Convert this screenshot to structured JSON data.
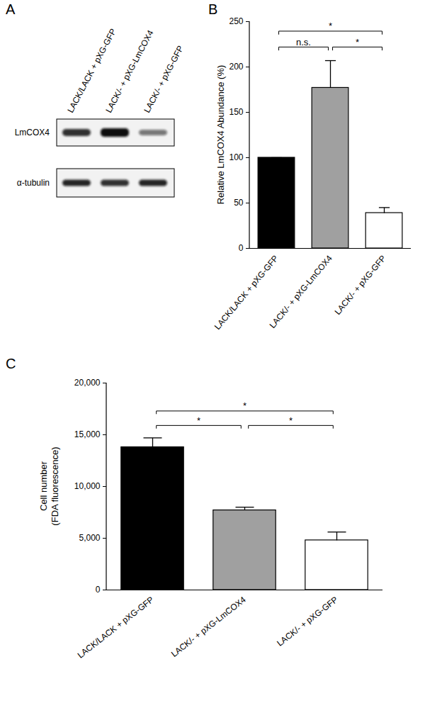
{
  "chart_data": [
    {
      "panel": "B",
      "type": "bar",
      "y_label": "Relative LmCOX4 Abundance (%)",
      "categories": [
        "LACK/LACK + pXG-GFP",
        "LACK/- + pXG-LmCOX4",
        "LACK/- + pXG-GFP"
      ],
      "values": [
        100,
        177,
        39
      ],
      "errors": [
        0,
        30,
        6
      ],
      "colors": [
        "#000000",
        "#a0a0a0",
        "#ffffff"
      ],
      "ylim": [
        0,
        250
      ],
      "yticks": [
        0,
        50,
        100,
        150,
        200,
        250
      ],
      "grid": false,
      "comparisons": [
        {
          "between": [
            "LACK/LACK + pXG-GFP",
            "LACK/- + pXG-LmCOX4"
          ],
          "label": "n.s."
        },
        {
          "between": [
            "LACK/- + pXG-LmCOX4",
            "LACK/- + pXG-GFP"
          ],
          "label": "*"
        },
        {
          "between": [
            "LACK/LACK + pXG-GFP",
            "LACK/- + pXG-GFP"
          ],
          "label": "*"
        }
      ]
    },
    {
      "panel": "C",
      "type": "bar",
      "y_label": "Cell number\n(FDA fluorescence)",
      "categories": [
        "LACK/LACK + pXG-GFP",
        "LACK/- + pXG-LmCOX4",
        "LACK/- + pXG-GFP"
      ],
      "values": [
        13800,
        7700,
        4800
      ],
      "errors": [
        900,
        300,
        800
      ],
      "colors": [
        "#000000",
        "#a0a0a0",
        "#ffffff"
      ],
      "ylim": [
        0,
        20000
      ],
      "yticks": [
        0,
        5000,
        10000,
        15000,
        20000
      ],
      "grid": false,
      "comparisons": [
        {
          "between": [
            "LACK/LACK + pXG-GFP",
            "LACK/- + pXG-LmCOX4"
          ],
          "label": "*"
        },
        {
          "between": [
            "LACK/- + pXG-LmCOX4",
            "LACK/- + pXG-GFP"
          ],
          "label": "*"
        },
        {
          "between": [
            "LACK/LACK + pXG-GFP",
            "LACK/- + pXG-GFP"
          ],
          "label": "*"
        }
      ]
    }
  ],
  "blot": {
    "panel": "A",
    "lanes": [
      "LACK/LACK + pXG-GFP",
      "LACK/- + pXG-LmCOX4",
      "LACK/- + pXG-GFP"
    ],
    "rows": [
      "LmCOX4",
      "α-tubulin"
    ]
  }
}
